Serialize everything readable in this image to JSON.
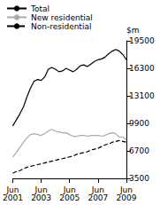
{
  "chart_data": {
    "type": "line",
    "y_label": "$m",
    "categories": [
      "Jun 2001",
      null,
      null,
      null,
      null,
      null,
      null,
      null,
      "Jun 2003",
      null,
      null,
      null,
      null,
      null,
      null,
      null,
      "Jun 2005",
      null,
      null,
      null,
      null,
      null,
      null,
      null,
      "Jun 2007",
      null,
      null,
      null,
      null,
      null,
      null,
      null,
      "Jun 2009"
    ],
    "series": [
      {
        "name": "Total",
        "color": "#000000",
        "line_style": "solid",
        "values": [
          9600,
          10300,
          11000,
          11800,
          13000,
          14000,
          14800,
          15000,
          14900,
          15300,
          16200,
          16400,
          16200,
          15900,
          16000,
          16300,
          16100,
          15900,
          16200,
          16600,
          16700,
          16500,
          16800,
          17100,
          17300,
          17400,
          17600,
          18000,
          18300,
          18500,
          18300,
          17900,
          17300
        ]
      },
      {
        "name": "New residential",
        "color": "#aaaaaa",
        "line_style": "solid",
        "values": [
          6000,
          6500,
          7100,
          7700,
          8200,
          8600,
          8700,
          8600,
          8500,
          8700,
          9000,
          9200,
          9000,
          8900,
          8800,
          8800,
          8600,
          8400,
          8400,
          8500,
          8500,
          8400,
          8500,
          8500,
          8500,
          8400,
          8500,
          8700,
          8800,
          8700,
          8300,
          8300,
          8000
        ]
      },
      {
        "name": "Non-residential",
        "color": "#000000",
        "line_style": "dashed",
        "values": [
          4100,
          4300,
          4400,
          4600,
          4800,
          4900,
          5000,
          5100,
          5200,
          5300,
          5400,
          5500,
          5600,
          5700,
          5800,
          5900,
          6000,
          6100,
          6300,
          6400,
          6500,
          6600,
          6800,
          6900,
          7000,
          7200,
          7400,
          7500,
          7700,
          7800,
          7900,
          7800,
          7700
        ]
      }
    ],
    "ylim": [
      3500,
      19500
    ],
    "yticks": [
      3500,
      6700,
      9900,
      13100,
      16300,
      19500
    ],
    "grid": false,
    "legend": "top-left"
  }
}
